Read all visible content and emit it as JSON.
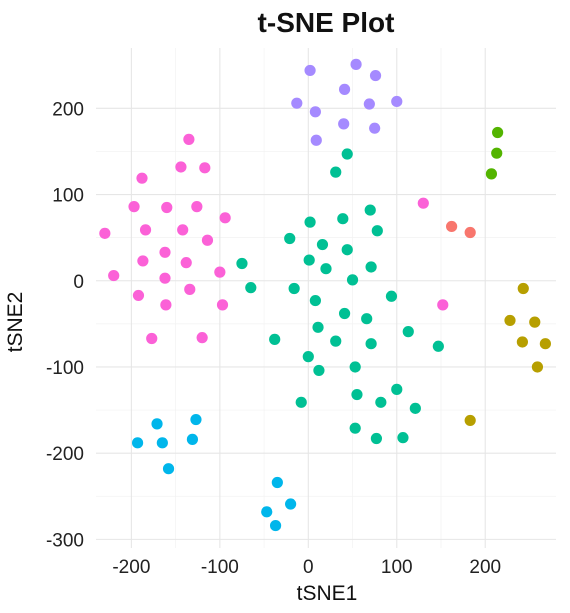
{
  "chart_data": {
    "type": "scatter",
    "title": "t-SNE Plot",
    "xlabel": "tSNE1",
    "ylabel": "tSNE2",
    "xlim": [
      -240,
      280
    ],
    "ylim": [
      -310,
      270
    ],
    "x_ticks": [
      -200,
      -100,
      0,
      100,
      200
    ],
    "y_ticks": [
      -300,
      -200,
      -100,
      0,
      100,
      200
    ],
    "grid": true,
    "legend": "none",
    "series": [
      {
        "color": "#f8766d",
        "points": [
          [
            162,
            63
          ],
          [
            183,
            56
          ]
        ]
      },
      {
        "color": "#b79f00",
        "points": [
          [
            243,
            -9
          ],
          [
            228,
            -46
          ],
          [
            256,
            -48
          ],
          [
            242,
            -71
          ],
          [
            268,
            -73
          ],
          [
            259,
            -100
          ],
          [
            183,
            -162
          ]
        ]
      },
      {
        "color": "#53b400",
        "points": [
          [
            214,
            172
          ],
          [
            213,
            148
          ],
          [
            207,
            124
          ]
        ]
      },
      {
        "color": "#00c094",
        "points": [
          [
            44,
            147
          ],
          [
            31,
            126
          ],
          [
            70,
            82
          ],
          [
            2,
            68
          ],
          [
            39,
            72
          ],
          [
            78,
            58
          ],
          [
            -21,
            49
          ],
          [
            16,
            42
          ],
          [
            44,
            36
          ],
          [
            1,
            24
          ],
          [
            20,
            14
          ],
          [
            71,
            16
          ],
          [
            -75,
            20
          ],
          [
            50,
            1
          ],
          [
            -65,
            -8
          ],
          [
            -16,
            -9
          ],
          [
            8,
            -23
          ],
          [
            94,
            -18
          ],
          [
            41,
            -38
          ],
          [
            66,
            -44
          ],
          [
            11,
            -54
          ],
          [
            -38,
            -68
          ],
          [
            31,
            -70
          ],
          [
            71,
            -73
          ],
          [
            113,
            -59
          ],
          [
            147,
            -76
          ],
          [
            0,
            -88
          ],
          [
            12,
            -104
          ],
          [
            53,
            -100
          ],
          [
            -8,
            -141
          ],
          [
            55,
            -132
          ],
          [
            100,
            -126
          ],
          [
            82,
            -141
          ],
          [
            121,
            -148
          ],
          [
            53,
            -171
          ],
          [
            77,
            -183
          ],
          [
            107,
            -182
          ]
        ]
      },
      {
        "color": "#00b6eb",
        "points": [
          [
            -171,
            -166
          ],
          [
            -127,
            -161
          ],
          [
            -193,
            -188
          ],
          [
            -165,
            -188
          ],
          [
            -131,
            -184
          ],
          [
            -158,
            -218
          ],
          [
            -35,
            -234
          ],
          [
            -20,
            -259
          ],
          [
            -47,
            -268
          ],
          [
            -37,
            -284
          ]
        ]
      },
      {
        "color": "#a58aff",
        "points": [
          [
            2,
            244
          ],
          [
            54,
            251
          ],
          [
            76,
            238
          ],
          [
            -13,
            206
          ],
          [
            41,
            222
          ],
          [
            8,
            196
          ],
          [
            69,
            205
          ],
          [
            100,
            208
          ],
          [
            40,
            182
          ],
          [
            75,
            177
          ],
          [
            9,
            163
          ]
        ]
      },
      {
        "color": "#fb61d7",
        "points": [
          [
            -135,
            164
          ],
          [
            -144,
            132
          ],
          [
            -117,
            131
          ],
          [
            -188,
            119
          ],
          [
            -197,
            86
          ],
          [
            -160,
            85
          ],
          [
            -126,
            86
          ],
          [
            -94,
            73
          ],
          [
            -184,
            59
          ],
          [
            -142,
            59
          ],
          [
            -230,
            55
          ],
          [
            -114,
            47
          ],
          [
            -162,
            33
          ],
          [
            -138,
            21
          ],
          [
            -187,
            23
          ],
          [
            -100,
            10
          ],
          [
            -220,
            6
          ],
          [
            -162,
            3
          ],
          [
            -134,
            -10
          ],
          [
            -192,
            -17
          ],
          [
            -161,
            -28
          ],
          [
            -97,
            -28
          ],
          [
            -177,
            -67
          ],
          [
            -120,
            -66
          ],
          [
            130,
            90
          ],
          [
            152,
            -28
          ]
        ]
      }
    ]
  }
}
